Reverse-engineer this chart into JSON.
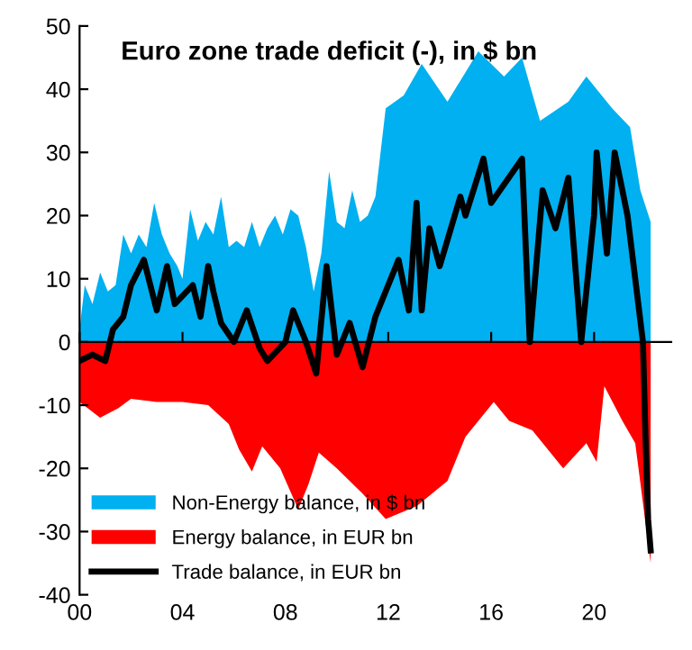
{
  "chart_data": {
    "type": "area",
    "title": "Euro zone trade deficit (-), in $ bn",
    "xlim": [
      2000,
      2023
    ],
    "xticks": [
      {
        "value": 2000,
        "label": "00"
      },
      {
        "value": 2004,
        "label": "04"
      },
      {
        "value": 2008,
        "label": "08"
      },
      {
        "value": 2012,
        "label": "12"
      },
      {
        "value": 2016,
        "label": "16"
      },
      {
        "value": 2020,
        "label": "20"
      }
    ],
    "ylim": [
      -40,
      50
    ],
    "yticks": [
      -40,
      -30,
      -20,
      -10,
      0,
      10,
      20,
      30,
      40,
      50
    ],
    "legend": "bottom left",
    "series": [
      {
        "name": "Non-Energy balance, in $ bn",
        "color": "#00b0f0",
        "x": [
          2000.0,
          2000.2,
          2000.5,
          2000.8,
          2001.1,
          2001.4,
          2001.7,
          2002.0,
          2002.3,
          2002.6,
          2002.9,
          2003.2,
          2003.5,
          2003.8,
          2004.0,
          2004.3,
          2004.6,
          2004.9,
          2005.2,
          2005.5,
          2005.8,
          2006.1,
          2006.4,
          2006.7,
          2007.0,
          2007.3,
          2007.6,
          2007.9,
          2008.2,
          2008.5,
          2008.8,
          2009.1,
          2009.4,
          2009.7,
          2010.0,
          2010.3,
          2010.6,
          2010.9,
          2011.2,
          2011.5,
          2011.9,
          2012.6,
          2013.3,
          2014.3,
          2015.5,
          2016.5,
          2017.2,
          2017.9,
          2019.0,
          2019.7,
          2020.7,
          2021.4,
          2021.8,
          2022.2
        ],
        "values": [
          2,
          9,
          6,
          11,
          8,
          9,
          17,
          14,
          17,
          15,
          22,
          17,
          14,
          12,
          10,
          21,
          16,
          19,
          17,
          23,
          15,
          16,
          15,
          19,
          15,
          18,
          20,
          17,
          21,
          20,
          15,
          8,
          14,
          27,
          19,
          18,
          24,
          19,
          20,
          23,
          37,
          39,
          44,
          38,
          46,
          42,
          45,
          35,
          38,
          42,
          37,
          34,
          24,
          19
        ]
      },
      {
        "name": "Energy balance, in EUR bn",
        "color": "#ff0000",
        "x": [
          2000.0,
          2000.8,
          2001.5,
          2002.0,
          2003.0,
          2004.0,
          2005.0,
          2005.8,
          2006.2,
          2006.7,
          2007.1,
          2007.8,
          2008.5,
          2008.9,
          2009.3,
          2010.0,
          2011.0,
          2011.9,
          2013.1,
          2014.3,
          2015.0,
          2016.1,
          2016.7,
          2017.6,
          2018.8,
          2019.7,
          2020.1,
          2020.4,
          2021.1,
          2021.6,
          2021.9,
          2022.2
        ],
        "values": [
          -9.5,
          -12,
          -10.5,
          -9,
          -9.5,
          -9.5,
          -10,
          -13,
          -17,
          -20.5,
          -16.5,
          -20,
          -26.5,
          -22.5,
          -17.5,
          -20,
          -24,
          -28,
          -26,
          -22,
          -15,
          -9.5,
          -12.5,
          -14,
          -20,
          -16,
          -19,
          -7,
          -12.5,
          -16,
          -25.5,
          -35
        ]
      },
      {
        "name": "Trade balance, in EUR bn",
        "type": "line",
        "color": "#000000",
        "x": [
          2000.0,
          2000.5,
          2001.0,
          2001.3,
          2001.7,
          2002.0,
          2002.5,
          2003.0,
          2003.4,
          2003.7,
          2004.4,
          2004.7,
          2005.0,
          2005.2,
          2005.5,
          2006.0,
          2006.5,
          2007.0,
          2007.3,
          2008.0,
          2008.3,
          2008.8,
          2009.2,
          2009.6,
          2010.0,
          2010.5,
          2011.0,
          2011.5,
          2012.4,
          2012.8,
          2013.1,
          2013.3,
          2013.6,
          2014.0,
          2014.8,
          2015.0,
          2015.7,
          2016.0,
          2017.2,
          2017.5,
          2018.0,
          2018.5,
          2019.0,
          2019.5,
          2020.0,
          2020.1,
          2020.5,
          2020.8,
          2021.3,
          2021.6,
          2021.9,
          2022.0,
          2022.1,
          2022.2
        ],
        "values": [
          -3,
          -2,
          -3,
          2,
          4,
          9,
          13,
          5,
          12,
          6,
          9,
          4,
          12,
          8,
          3,
          0,
          5,
          -1,
          -3,
          0,
          5,
          0,
          -5,
          12,
          -2,
          3,
          -4,
          4,
          13,
          5,
          22,
          5,
          18,
          12,
          23,
          20,
          29,
          22,
          29,
          0,
          24,
          18,
          26,
          0,
          20,
          30,
          14,
          30,
          20,
          10,
          0,
          -15,
          -28,
          -33
        ]
      }
    ]
  }
}
